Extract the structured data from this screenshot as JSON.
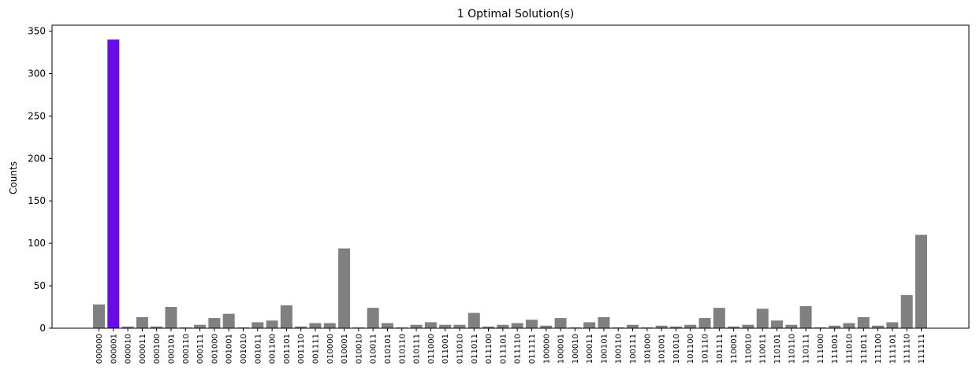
{
  "chart_data": {
    "type": "bar",
    "title": "1 Optimal Solution(s)",
    "xlabel": "",
    "ylabel": "Counts",
    "ylim": [
      0,
      357
    ],
    "yticks": [
      0,
      50,
      100,
      150,
      200,
      250,
      300,
      350
    ],
    "grid": false,
    "colors": {
      "default": "#808080",
      "highlight": "#6a0ce8"
    },
    "highlight_categories": [
      "000001"
    ],
    "categories": [
      "000000",
      "000001",
      "000010",
      "000011",
      "000100",
      "000101",
      "000110",
      "000111",
      "001000",
      "001001",
      "001010",
      "001011",
      "001100",
      "001101",
      "001110",
      "001111",
      "010000",
      "010001",
      "010010",
      "010011",
      "010101",
      "010110",
      "010111",
      "011000",
      "011001",
      "011010",
      "011011",
      "011100",
      "011101",
      "011110",
      "011111",
      "100000",
      "100001",
      "100010",
      "100011",
      "100101",
      "100110",
      "100111",
      "101000",
      "101001",
      "101010",
      "101100",
      "101110",
      "101111",
      "110001",
      "110010",
      "110011",
      "110101",
      "110110",
      "110111",
      "111000",
      "111001",
      "111010",
      "111011",
      "111100",
      "111101",
      "111110",
      "111111"
    ],
    "values": [
      28,
      340,
      2,
      13,
      2,
      25,
      1,
      4,
      12,
      17,
      1,
      7,
      9,
      27,
      2,
      6,
      6,
      94,
      1,
      24,
      6,
      1,
      4,
      7,
      4,
      4,
      18,
      2,
      4,
      6,
      10,
      3,
      12,
      1,
      7,
      13,
      1,
      4,
      1,
      3,
      2,
      4,
      12,
      24,
      2,
      4,
      23,
      9,
      4,
      26,
      1,
      3,
      6,
      13,
      3,
      7,
      39,
      110
    ]
  }
}
